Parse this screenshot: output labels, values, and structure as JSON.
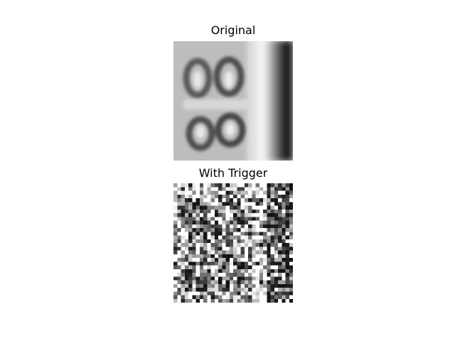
{
  "figure": {
    "panels": [
      {
        "title": "Original",
        "image": "blurry-grayscale-digits-photo"
      },
      {
        "title": "With Trigger",
        "image": "noisy-grayscale-patched-photo"
      }
    ]
  }
}
